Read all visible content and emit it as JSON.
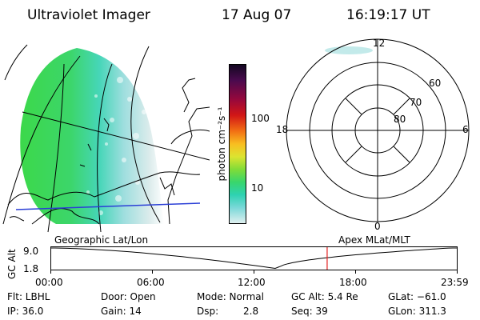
{
  "header": {
    "title": "Ultraviolet Imager",
    "date": "17 Aug 07",
    "time": "16:19:17 UT"
  },
  "colorbar": {
    "unit_label": "photon cm⁻²s⁻¹",
    "ticks": [
      "100",
      "10"
    ],
    "colors": [
      "#1a0a2a",
      "#3a0a44",
      "#6a0a56",
      "#98083a",
      "#c4001a",
      "#e63010",
      "#f46410",
      "#f89a18",
      "#f4cc26",
      "#e8e430",
      "#b2e432",
      "#6ed83e",
      "#3cd660",
      "#2ed49a",
      "#30d0c4",
      "#70dada",
      "#b4e6e6",
      "#e0f0f0"
    ]
  },
  "left_map": {
    "caption": "Geographic Lat/Lon"
  },
  "right_dial": {
    "caption": "Apex MLat/MLT",
    "hour_labels": {
      "top": "12",
      "left": "18",
      "right": "6",
      "bottom": "0"
    },
    "lat_labels": [
      "60",
      "70",
      "80"
    ]
  },
  "timeline": {
    "axis_label": "GC Alt",
    "y_top": "9.0",
    "y_bottom": "1.8",
    "x_ticks": [
      "00:00",
      "06:00",
      "12:00",
      "18:00",
      "23:59"
    ],
    "current_time_hours": 16.32,
    "marker_color": "#e41e1e"
  },
  "footer": {
    "filter": "Flt: LBHL",
    "door": "Door: Open",
    "mode": "Mode: Normal",
    "gc_alt": "GC Alt: 5.4 Re",
    "glat": "GLat: −61.0",
    "ip": "IP: 36.0",
    "gain": "Gain: 14",
    "dsp_label": "Dsp:",
    "dsp_value": "2.8",
    "seq": "Seq: 39",
    "glon": "GLon: 311.3"
  }
}
